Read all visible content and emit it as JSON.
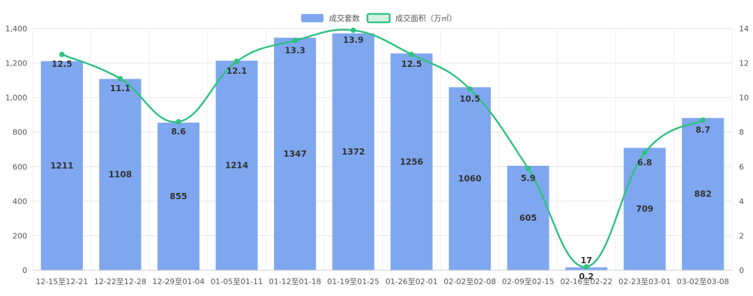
{
  "chart_data": {
    "type": "bar",
    "categories": [
      "12-15至12-21",
      "12-22至12-28",
      "12-29至01-04",
      "01-05至01-11",
      "01-12至01-18",
      "01-19至01-25",
      "01-26至02-01",
      "02-02至02-08",
      "02-09至02-15",
      "02-16至02-22",
      "02-23至03-01",
      "03-02至03-08"
    ],
    "series": [
      {
        "name": "成交套数",
        "type": "bar",
        "axis": "left",
        "color": "#7fa7ef",
        "values": [
          1211,
          1108,
          855,
          1214,
          1347,
          1372,
          1256,
          1060,
          605,
          17,
          709,
          882
        ]
      },
      {
        "name": "成交面积（万㎡）",
        "type": "line",
        "axis": "right",
        "color": "#2ec27e",
        "values": [
          12.5,
          11.1,
          8.6,
          12.1,
          13.3,
          13.9,
          12.5,
          10.5,
          5.9,
          0.2,
          6.8,
          8.7
        ]
      }
    ],
    "y_left": {
      "min": 0,
      "max": 1400,
      "ticks": [
        "0",
        "200",
        "400",
        "600",
        "800",
        "1,000",
        "1,200",
        "1,400"
      ]
    },
    "y_right": {
      "min": 0,
      "max": 14,
      "ticks": [
        "0",
        "2",
        "4",
        "6",
        "8",
        "10",
        "12",
        "14"
      ]
    },
    "grid": true,
    "legend_position": "top-center"
  }
}
